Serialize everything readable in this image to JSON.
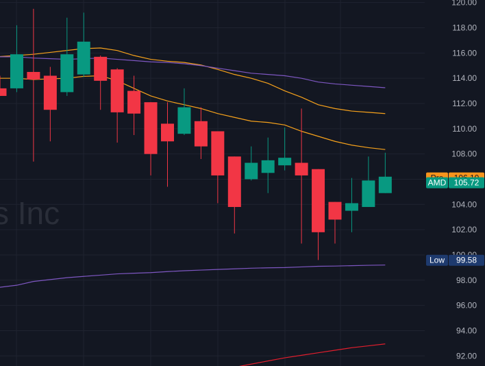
{
  "watermark": "s Inc",
  "colors": {
    "background": "#131722",
    "grid": "#1f2330",
    "up": "#089981",
    "down": "#f23645",
    "ma_orange": "#f7a21b",
    "ma_purple": "#7e57c2",
    "ma_red": "#e31e2d",
    "axis_text": "#b2b5be",
    "pre_tag": "#f7941d",
    "amd_tag": "#089981",
    "low_tag": "#1e3a6e"
  },
  "price_tags": [
    {
      "label": "Pre",
      "value": "106.10",
      "price": 106.1,
      "kind": "pre"
    },
    {
      "label": "AMD",
      "value": "105.72",
      "price": 105.72,
      "kind": "amd"
    },
    {
      "label": "Low",
      "value": "99.58",
      "price": 99.58,
      "kind": "low"
    }
  ],
  "chart_data": {
    "type": "candlestick",
    "y_ticks": [
      "120.00",
      "118.00",
      "116.00",
      "114.00",
      "112.00",
      "110.00",
      "108.00",
      "106.00",
      "104.00",
      "102.00",
      "100.00",
      "98.00",
      "96.00",
      "94.00",
      "92.00"
    ],
    "ylim": [
      91.2,
      120.2
    ],
    "candles": [
      {
        "o": 113.2,
        "h": 114.2,
        "l": 112.6,
        "c": 112.6
      },
      {
        "o": 113.2,
        "h": 118.2,
        "l": 112.9,
        "c": 115.9
      },
      {
        "o": 114.5,
        "h": 119.5,
        "l": 107.4,
        "c": 113.9
      },
      {
        "o": 114.2,
        "h": 114.9,
        "l": 109.0,
        "c": 111.5
      },
      {
        "o": 112.9,
        "h": 118.8,
        "l": 112.6,
        "c": 115.9
      },
      {
        "o": 114.3,
        "h": 119.2,
        "l": 114.1,
        "c": 116.9
      },
      {
        "o": 115.7,
        "h": 115.8,
        "l": 111.5,
        "c": 113.8
      },
      {
        "o": 114.7,
        "h": 114.8,
        "l": 108.9,
        "c": 111.3
      },
      {
        "o": 113.0,
        "h": 114.2,
        "l": 109.5,
        "c": 111.2
      },
      {
        "o": 112.1,
        "h": 112.1,
        "l": 106.3,
        "c": 108.0
      },
      {
        "o": 110.4,
        "h": 112.1,
        "l": 105.4,
        "c": 109.0
      },
      {
        "o": 109.6,
        "h": 113.2,
        "l": 109.5,
        "c": 111.7
      },
      {
        "o": 110.6,
        "h": 111.7,
        "l": 107.6,
        "c": 108.6
      },
      {
        "o": 109.8,
        "h": 109.8,
        "l": 104.1,
        "c": 106.3
      },
      {
        "o": 107.8,
        "h": 107.8,
        "l": 101.7,
        "c": 103.8
      },
      {
        "o": 106.0,
        "h": 108.6,
        "l": 105.9,
        "c": 107.3
      },
      {
        "o": 106.5,
        "h": 109.3,
        "l": 104.9,
        "c": 107.5
      },
      {
        "o": 107.1,
        "h": 110.1,
        "l": 106.7,
        "c": 107.7
      },
      {
        "o": 107.3,
        "h": 111.6,
        "l": 100.9,
        "c": 106.3
      },
      {
        "o": 106.8,
        "h": 106.8,
        "l": 99.6,
        "c": 101.8
      },
      {
        "o": 104.2,
        "h": 104.2,
        "l": 100.9,
        "c": 102.8
      },
      {
        "o": 103.5,
        "h": 106.1,
        "l": 101.8,
        "c": 104.1
      },
      {
        "o": 103.8,
        "h": 107.8,
        "l": 103.8,
        "c": 105.9
      },
      {
        "o": 104.9,
        "h": 108.1,
        "l": 104.9,
        "c": 106.2
      }
    ],
    "series": [
      {
        "color": "#f7a21b",
        "values": [
          115.7,
          115.8,
          115.9,
          116.05,
          116.2,
          116.35,
          116.4,
          116.2,
          115.8,
          115.5,
          115.35,
          115.25,
          115.05,
          114.7,
          114.3,
          114.0,
          113.6,
          113.0,
          112.5,
          111.9,
          111.6,
          111.4,
          111.3,
          111.2
        ]
      },
      {
        "color": "#f7a21b",
        "values": [
          114.0,
          114.0,
          113.9,
          113.95,
          114.0,
          114.15,
          114.2,
          113.8,
          113.2,
          112.6,
          112.2,
          111.9,
          111.6,
          111.2,
          110.9,
          110.6,
          110.5,
          110.3,
          109.8,
          109.4,
          109.0,
          108.7,
          108.5,
          108.35
        ]
      },
      {
        "color": "#7e57c2",
        "values": [
          115.7,
          115.7,
          115.6,
          115.55,
          115.5,
          115.55,
          115.6,
          115.5,
          115.4,
          115.3,
          115.25,
          115.15,
          115.0,
          114.8,
          114.6,
          114.4,
          114.3,
          114.2,
          114.0,
          113.7,
          113.55,
          113.45,
          113.35,
          113.25
        ]
      },
      {
        "color": "#7e57c2",
        "values": [
          97.4,
          97.6,
          97.9,
          98.05,
          98.2,
          98.3,
          98.4,
          98.5,
          98.55,
          98.6,
          98.68,
          98.75,
          98.8,
          98.85,
          98.9,
          98.95,
          98.98,
          99.0,
          99.05,
          99.1,
          99.12,
          99.15,
          99.18,
          99.2
        ]
      },
      {
        "color": "#e31e2d",
        "values": [
          null,
          null,
          null,
          null,
          null,
          null,
          null,
          null,
          null,
          null,
          null,
          null,
          null,
          90.85,
          91.1,
          91.35,
          91.6,
          91.85,
          92.05,
          92.25,
          92.45,
          92.65,
          92.8,
          92.95
        ]
      }
    ]
  }
}
